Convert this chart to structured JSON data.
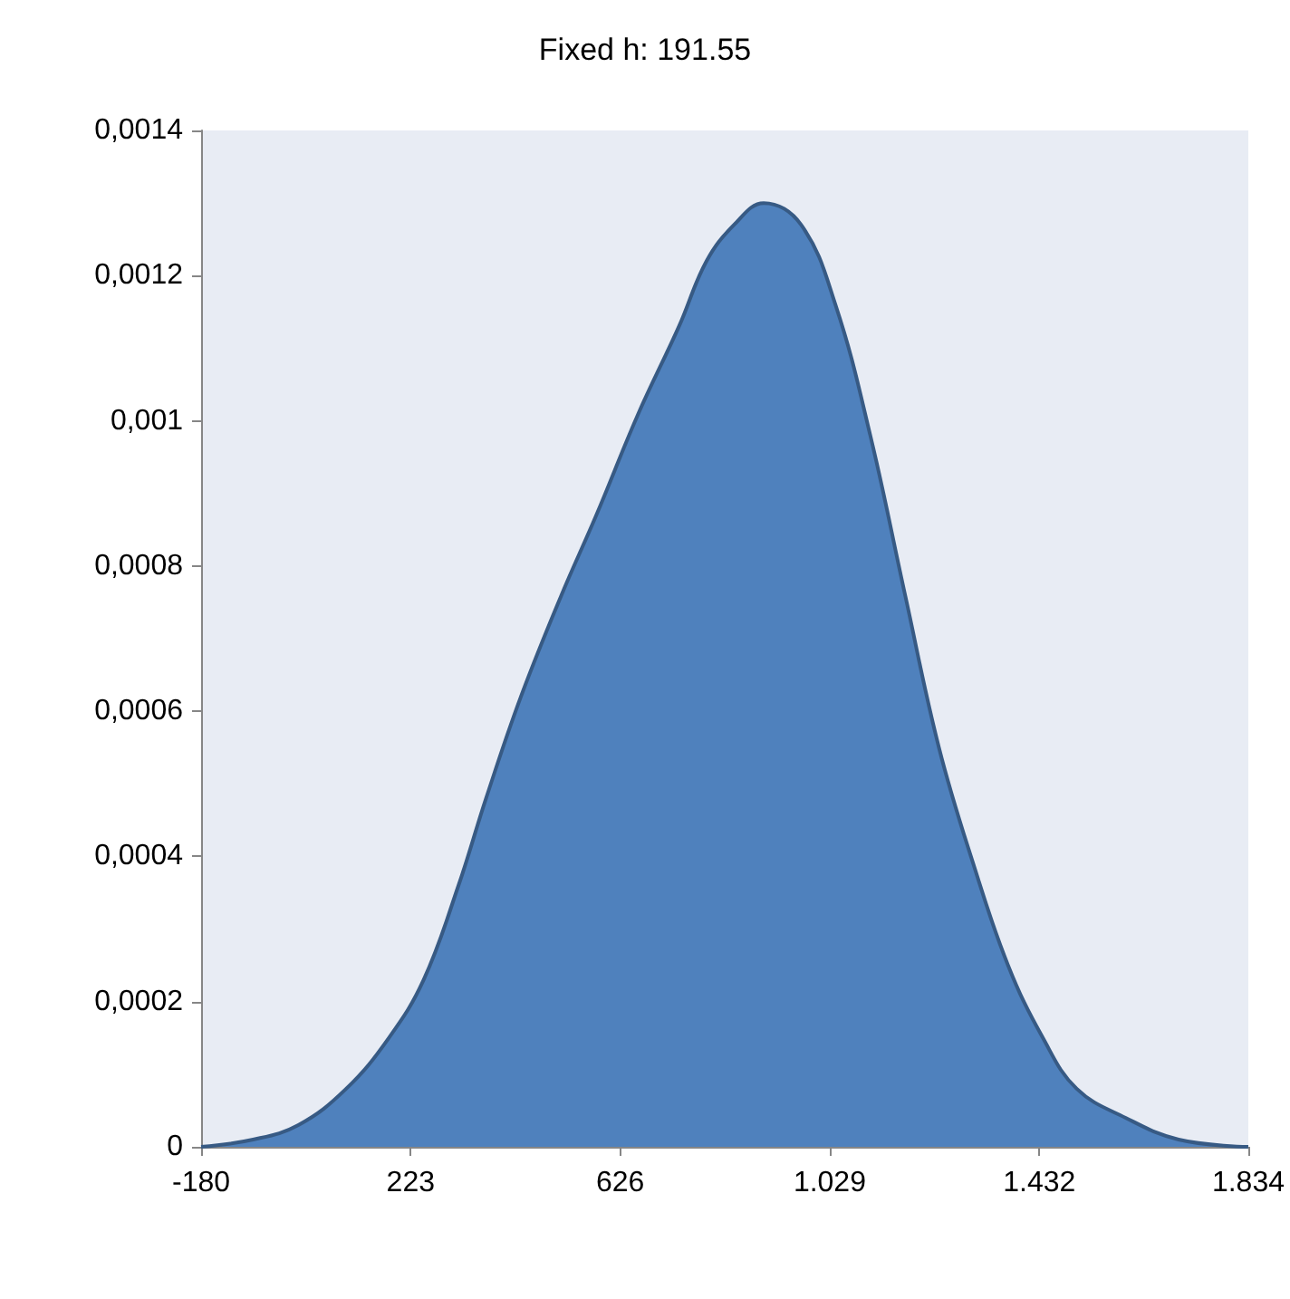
{
  "chart_data": {
    "type": "area",
    "title": "Fixed h: 191.55",
    "x": [
      -180,
      -80,
      7,
      99,
      181,
      248,
      315,
      368,
      435,
      513,
      580,
      661,
      739,
      792,
      845,
      902,
      974,
      1040,
      1107,
      1174,
      1239,
      1305,
      1372,
      1439,
      1504,
      1598,
      1700,
      1834
    ],
    "series": [
      {
        "color": "#4f81bd",
        "values": [
          0,
          1e-05,
          3e-05,
          8e-05,
          0.00015,
          0.00023,
          0.00036,
          0.00048,
          0.00062,
          0.00076,
          0.00087,
          0.00101,
          0.00113,
          0.00122,
          0.00127,
          0.0013,
          0.00127,
          0.00116,
          0.00098,
          0.00076,
          0.00055,
          0.00039,
          0.00025,
          0.00015,
          8e-05,
          4e-05,
          1e-05,
          0
        ]
      }
    ],
    "xlim": [
      -180,
      1834
    ],
    "xticks": [
      -180,
      223,
      626,
      {
        "value": 1029,
        "label": "1.029"
      },
      {
        "value": 1432,
        "label": "1.432"
      },
      {
        "value": 1834,
        "label": "1.834"
      }
    ],
    "ylim": [
      0,
      0.0014
    ],
    "yticks": [
      0,
      {
        "value": 0.0002,
        "label": "0,0002"
      },
      {
        "value": 0.0004,
        "label": "0,0004"
      },
      {
        "value": 0.0006,
        "label": "0,0006"
      },
      {
        "value": 0.0008,
        "label": "0,0008"
      },
      {
        "value": 0.001,
        "label": "0,001"
      },
      {
        "value": 0.0012,
        "label": "0,0012"
      },
      {
        "value": 0.0014,
        "label": "0,0014"
      }
    ],
    "grid": false
  }
}
